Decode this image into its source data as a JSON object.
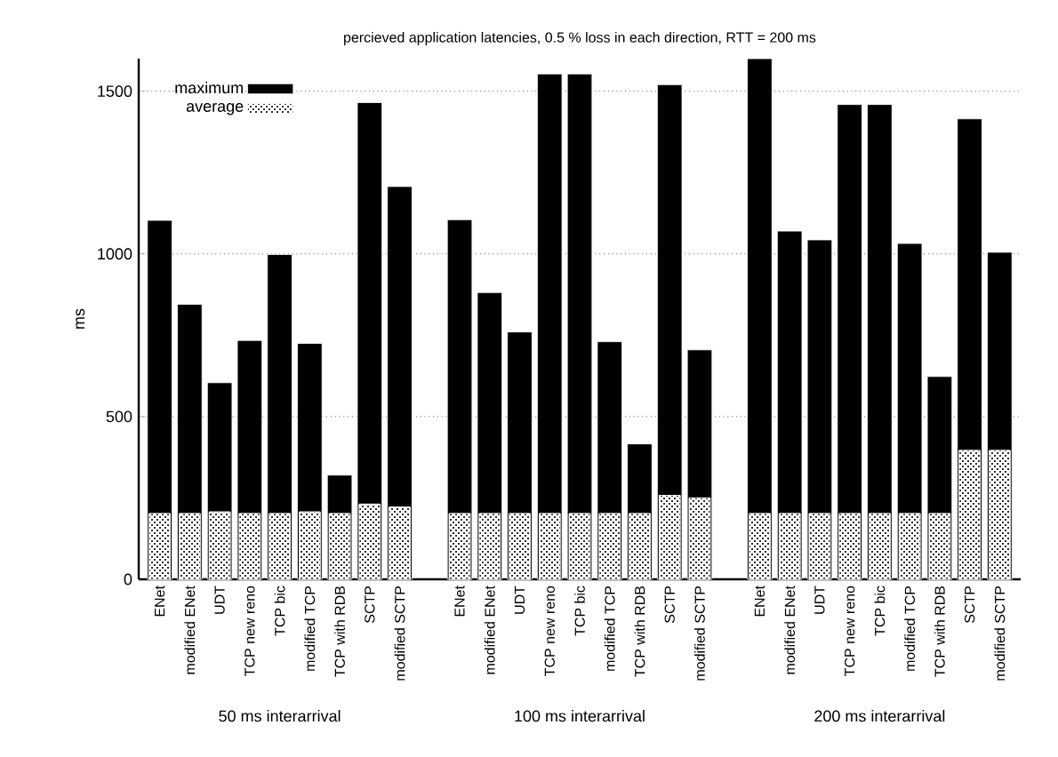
{
  "chart_data": {
    "type": "bar",
    "title": "percieved application latencies,  0.5 % loss in each direction,  RTT = 200 ms",
    "ylabel": "ms",
    "categories": [
      "ENet",
      "modified ENet",
      "UDT",
      "TCP new reno",
      "TCP bic",
      "modified TCP",
      "TCP with RDB",
      "SCTP",
      "modified SCTP",
      null,
      "ENet",
      "modified ENet",
      "UDT",
      "TCP new reno",
      "TCP bic",
      "modified TCP",
      "TCP with RDB",
      "SCTP",
      "modified SCTP",
      null,
      "ENet",
      "modified ENet",
      "UDT",
      "TCP new reno",
      "TCP bic",
      "modified TCP",
      "TCP with RDB",
      "SCTP",
      "modified SCTP"
    ],
    "series": [
      {
        "name": "maximum",
        "color": "#000000",
        "values": [
          1103,
          845,
          604,
          734,
          998,
          725,
          320,
          1465,
          1207,
          null,
          1105,
          881,
          760,
          1553,
          1553,
          730,
          416,
          1520,
          705,
          null,
          1600,
          1070,
          1043,
          1459,
          1459,
          1032,
          623,
          1415,
          1005
        ]
      },
      {
        "name": "average",
        "color": "#ffffff",
        "values": [
          202,
          202,
          207,
          202,
          202,
          207,
          202,
          231,
          222,
          null,
          202,
          202,
          202,
          202,
          202,
          202,
          202,
          258,
          250,
          null,
          202,
          202,
          202,
          202,
          202,
          202,
          202,
          396,
          396
        ]
      }
    ],
    "annotations": [
      "50 ms interarrival",
      "100 ms interarrival",
      "200 ms interarrival"
    ],
    "ylim": [
      0,
      1600
    ],
    "yticks": [
      0,
      500,
      1000,
      1500
    ],
    "grid": "y",
    "legend": "top left"
  }
}
